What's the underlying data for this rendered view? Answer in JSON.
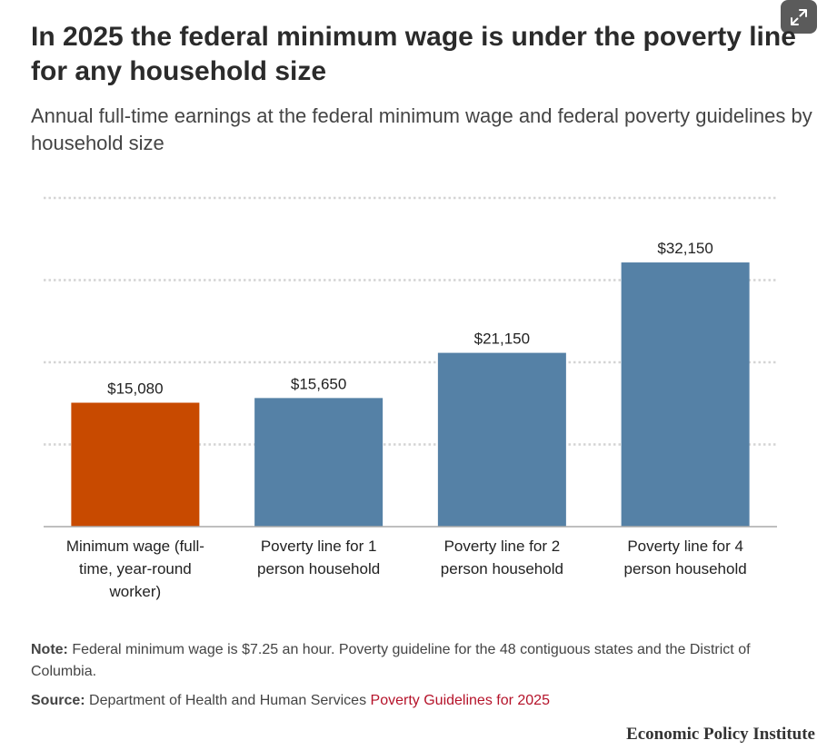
{
  "header": {
    "title": "In 2025 the federal minimum wage is under the poverty line for any household size",
    "subtitle": "Annual full-time earnings at the federal minimum wage and federal poverty guidelines by household size"
  },
  "controls": {
    "expand_icon": "expand-icon"
  },
  "chart_data": {
    "type": "bar",
    "title": "In 2025 the federal minimum wage is under the poverty line for any household size",
    "subtitle": "Annual full-time earnings at the federal minimum wage and federal poverty guidelines by household size",
    "categories": [
      "Minimum wage (full-time, year-round worker)",
      "Poverty line for 1 person household",
      "Poverty line for 2 person household",
      "Poverty line for 4 person household"
    ],
    "category_lines": [
      [
        "Minimum wage (full-",
        "time, year-round",
        "worker)"
      ],
      [
        "Poverty line for 1",
        "person household"
      ],
      [
        "Poverty line for 2",
        "person household"
      ],
      [
        "Poverty line for 4",
        "person household"
      ]
    ],
    "values": [
      15080,
      15650,
      21150,
      32150
    ],
    "data_labels": [
      "$15,080",
      "$15,650",
      "$21,150",
      "$32,150"
    ],
    "colors": [
      "#c84a00",
      "#5581a6",
      "#5581a6",
      "#5581a6"
    ],
    "ylim": [
      0,
      40000
    ],
    "grid_values": [
      10000,
      20000,
      30000,
      40000
    ],
    "grid": true,
    "xlabel": "",
    "ylabel": ""
  },
  "footer": {
    "note_label": "Note:",
    "note_text": "Federal minimum wage is $7.25 an hour. Poverty guideline for the 48 contiguous states and the District of Columbia.",
    "source_label": "Source:",
    "source_text": "Department of Health and Human Services",
    "source_link": "Poverty Guidelines for 2025",
    "brand": "Economic Policy Institute"
  }
}
